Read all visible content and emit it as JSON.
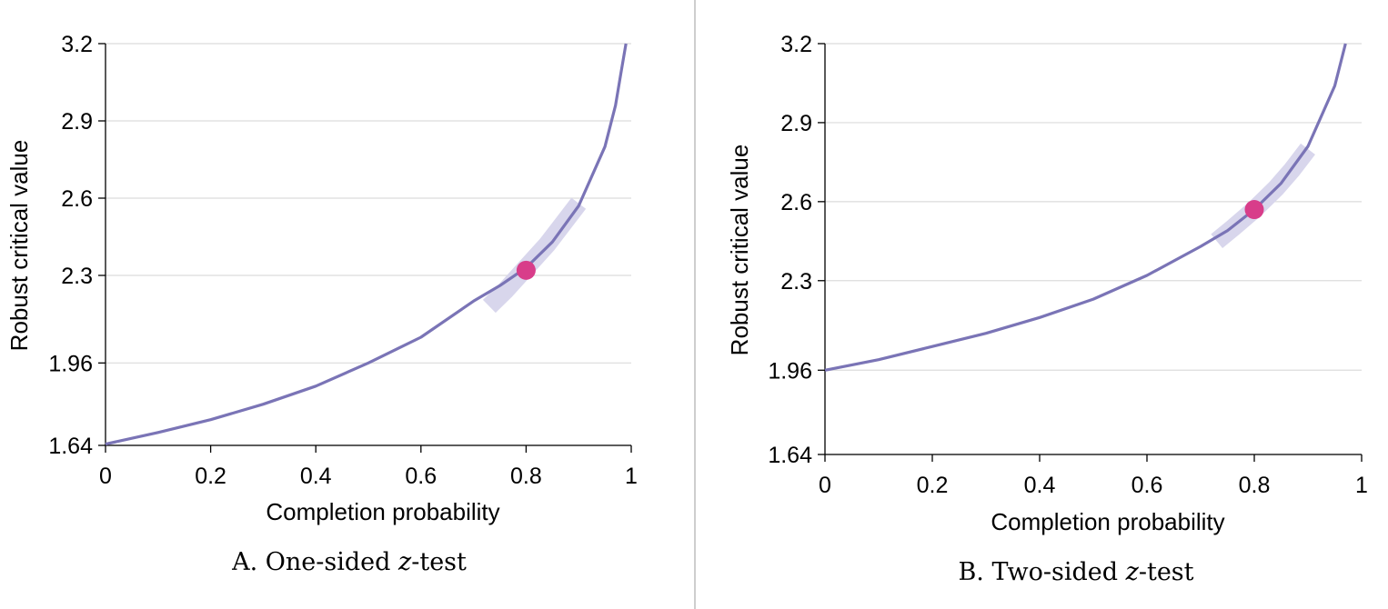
{
  "chart_data": [
    {
      "type": "line",
      "panel_label": "A.",
      "caption_prefix": "One-sided ",
      "caption_var": "z",
      "caption_suffix": "-test",
      "xlabel": "Completion probability",
      "ylabel": "Robust critical value",
      "xlim": [
        0,
        1
      ],
      "ylim": [
        1.64,
        3.2
      ],
      "x_ticks": [
        0,
        0.2,
        0.4,
        0.6,
        0.8,
        1
      ],
      "x_tick_labels": [
        "0",
        "0.2",
        "0.4",
        "0.6",
        "0.8",
        "1"
      ],
      "y_ticks": [
        1.64,
        1.96,
        2.3,
        2.6,
        2.9,
        3.2
      ],
      "y_tick_labels": [
        "1.64",
        "1.96",
        "2.3",
        "2.6",
        "2.9",
        "3.2"
      ],
      "grid": "horizontal",
      "curve": {
        "x": [
          0,
          0.1,
          0.2,
          0.3,
          0.4,
          0.5,
          0.6,
          0.7,
          0.75,
          0.8,
          0.85,
          0.9,
          0.95,
          0.97,
          0.98,
          0.99
        ],
        "y": [
          1.645,
          1.69,
          1.74,
          1.8,
          1.87,
          1.96,
          2.06,
          2.2,
          2.26,
          2.33,
          2.43,
          2.57,
          2.8,
          2.96,
          3.08,
          3.2
        ]
      },
      "band": {
        "x": [
          0.73,
          0.76,
          0.8,
          0.84,
          0.87,
          0.9
        ],
        "y": [
          2.18,
          2.24,
          2.33,
          2.42,
          2.5,
          2.58
        ]
      },
      "point": {
        "x": 0.8,
        "y": 2.32
      },
      "colors": {
        "curve": "#7a74b6",
        "band": "#d8d6ec",
        "point": "#d83d8a",
        "grid": "#dcdcdc"
      }
    },
    {
      "type": "line",
      "panel_label": "B.",
      "caption_prefix": "Two-sided ",
      "caption_var": "z",
      "caption_suffix": "-test",
      "xlabel": "Completion probability",
      "ylabel": "Robust critical value",
      "xlim": [
        0,
        1
      ],
      "ylim": [
        1.64,
        3.2
      ],
      "x_ticks": [
        0,
        0.2,
        0.4,
        0.6,
        0.8,
        1
      ],
      "x_tick_labels": [
        "0",
        "0.2",
        "0.4",
        "0.6",
        "0.8",
        "1"
      ],
      "y_ticks": [
        1.64,
        1.96,
        2.3,
        2.6,
        2.9,
        3.2
      ],
      "y_tick_labels": [
        "1.64",
        "1.96",
        "2.3",
        "2.6",
        "2.9",
        "3.2"
      ],
      "grid": "horizontal",
      "curve": {
        "x": [
          0,
          0.1,
          0.2,
          0.3,
          0.4,
          0.5,
          0.6,
          0.7,
          0.75,
          0.8,
          0.85,
          0.9,
          0.95,
          0.97
        ],
        "y": [
          1.96,
          2.0,
          2.05,
          2.1,
          2.16,
          2.23,
          2.32,
          2.43,
          2.49,
          2.57,
          2.67,
          2.81,
          3.04,
          3.2
        ]
      },
      "band": {
        "x": [
          0.73,
          0.76,
          0.8,
          0.84,
          0.87,
          0.9
        ],
        "y": [
          2.45,
          2.5,
          2.57,
          2.65,
          2.72,
          2.8
        ]
      },
      "point": {
        "x": 0.8,
        "y": 2.57
      },
      "colors": {
        "curve": "#7a74b6",
        "band": "#d8d6ec",
        "point": "#d83d8a",
        "grid": "#dcdcdc"
      }
    }
  ]
}
